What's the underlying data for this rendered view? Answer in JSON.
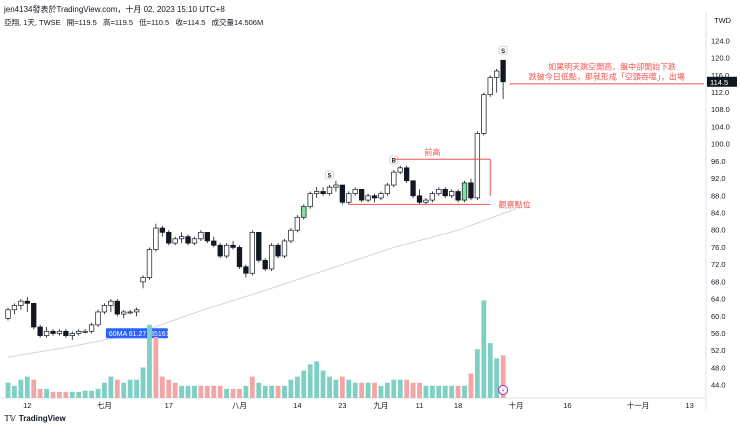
{
  "header": {
    "caption": "jen4134發表於TradingView.com，十月 02, 2023 15:10 UTC+8",
    "symbol": "亞翔, 1天, TWSE",
    "open": "開=119.5",
    "high": "高=119.5",
    "low": "低=110.5",
    "close": "收=114.5",
    "volume": "成交量14.506M",
    "currency": "TWD"
  },
  "footer": {
    "brand": "TradingView",
    "logo_icon": "tradingview-logo-icon"
  },
  "colors": {
    "up_volume": "#7ecfc4",
    "down_volume": "#f4a6a6",
    "annotation_red": "#f05350",
    "ma_line": "#d1d4dc",
    "ma_label_bg": "#2962ff",
    "price_label_bg": "#131722",
    "green_candle": "#7fe3a6"
  },
  "chart_data": {
    "type": "candlestick",
    "y_axis": {
      "ticks": [
        "124.0",
        "120.0",
        "116.0",
        "112.0",
        "108.0",
        "104.0",
        "100.0",
        "96.0",
        "92.0",
        "88.0",
        "84.0",
        "80.0",
        "76.0",
        "72.0",
        "68.0",
        "64.0",
        "60.0",
        "56.0",
        "52.0",
        "48.0",
        "44.0"
      ],
      "range": [
        41,
        127
      ]
    },
    "x_axis": {
      "ticks": [
        {
          "label": "12",
          "i": 3
        },
        {
          "label": "七月",
          "i": 15
        },
        {
          "label": "17",
          "i": 25
        },
        {
          "label": "八月",
          "i": 36
        },
        {
          "label": "14",
          "i": 45
        },
        {
          "label": "23",
          "i": 52
        },
        {
          "label": "九月",
          "i": 58
        },
        {
          "label": "11",
          "i": 64
        },
        {
          "label": "18",
          "i": 70
        },
        {
          "label": "十月",
          "i": 79
        },
        {
          "label": "16",
          "i": 87
        },
        {
          "label": "十一月",
          "i": 98
        },
        {
          "label": "13",
          "i": 106
        }
      ]
    },
    "last_price": "114.5",
    "ma_label": "60MA 61.27135161",
    "ma60": [
      [
        0,
        50.5
      ],
      [
        10,
        53
      ],
      [
        20,
        56
      ],
      [
        30,
        61.3
      ],
      [
        40,
        66
      ],
      [
        50,
        71
      ],
      [
        60,
        76
      ],
      [
        70,
        80
      ],
      [
        79,
        85
      ]
    ],
    "candles": [
      [
        59.5,
        62,
        59,
        61.5
      ],
      [
        61.5,
        63,
        60.5,
        62.5
      ],
      [
        62.5,
        64,
        61.5,
        63.5
      ],
      [
        63.5,
        64.5,
        61,
        63
      ],
      [
        63,
        62.5,
        57,
        57.5
      ],
      [
        57.5,
        58,
        55,
        55.5
      ],
      [
        55.5,
        57.5,
        55,
        56.5
      ],
      [
        56.5,
        57,
        55.5,
        56
      ],
      [
        56,
        57,
        55.5,
        56.5
      ],
      [
        56.5,
        57,
        55,
        55.5
      ],
      [
        55.5,
        56.5,
        54.5,
        56
      ],
      [
        56,
        57,
        55.5,
        56.5
      ],
      [
        56.5,
        57,
        56,
        56.5
      ],
      [
        56.5,
        58.5,
        56,
        58
      ],
      [
        58,
        61.5,
        57.5,
        61
      ],
      [
        61,
        63,
        60.5,
        62.5
      ],
      [
        62.5,
        64,
        61,
        63.5
      ],
      [
        63.5,
        64,
        60,
        60.5
      ],
      [
        60.5,
        61.5,
        59.5,
        61
      ],
      [
        61,
        61.5,
        60.5,
        61
      ],
      [
        61,
        62,
        60,
        61.5
      ],
      [
        68,
        69.5,
        66.5,
        69
      ],
      [
        69,
        76,
        68.5,
        75.5
      ],
      [
        75.5,
        81.5,
        75,
        80.5
      ],
      [
        80.5,
        81,
        78.5,
        79.5
      ],
      [
        79.5,
        80,
        76.5,
        77
      ],
      [
        77,
        78.5,
        76.5,
        78
      ],
      [
        78,
        79.5,
        77,
        78.5
      ],
      [
        78.5,
        79,
        76.5,
        77
      ],
      [
        77,
        78.5,
        76.5,
        78
      ],
      [
        78,
        80,
        77.5,
        79.5
      ],
      [
        79.5,
        79.5,
        77,
        77.5
      ],
      [
        77.5,
        78.5,
        76,
        76.5
      ],
      [
        76.5,
        77,
        73.5,
        74
      ],
      [
        74,
        77,
        73.5,
        76.5
      ],
      [
        76.5,
        77.5,
        75.5,
        76
      ],
      [
        76,
        76.5,
        71,
        71.5
      ],
      [
        71.5,
        72,
        69,
        70
      ],
      [
        70,
        80,
        69.5,
        79.5
      ],
      [
        79.5,
        79.5,
        72.5,
        73
      ],
      [
        73,
        73.5,
        70.5,
        71
      ],
      [
        71,
        77,
        70.5,
        76.5
      ],
      [
        76.5,
        77,
        73.5,
        74
      ],
      [
        74,
        78,
        73.5,
        77.5
      ],
      [
        77.5,
        80.5,
        77,
        80
      ],
      [
        80,
        83.5,
        79.5,
        83
      ],
      [
        83,
        86,
        82.5,
        85.5
      ],
      [
        85.5,
        89,
        85,
        88.5
      ],
      [
        88.5,
        90,
        87.5,
        89
      ],
      [
        89,
        90,
        88,
        88.5
      ],
      [
        88.5,
        90.5,
        88,
        90
      ],
      [
        90,
        91.5,
        89,
        90.5
      ],
      [
        90.5,
        90.5,
        86,
        86.5
      ],
      [
        86.5,
        89,
        86,
        88.5
      ],
      [
        88.5,
        90,
        88,
        89.5
      ],
      [
        89.5,
        89.5,
        86.5,
        87
      ],
      [
        87,
        88.5,
        86.5,
        88
      ],
      [
        88,
        88.5,
        86.5,
        87.5
      ],
      [
        87.5,
        89,
        87,
        88.5
      ],
      [
        88.5,
        91,
        88,
        90.5
      ],
      [
        90.5,
        94,
        90,
        93.5
      ],
      [
        93.5,
        95,
        93,
        94.5
      ],
      [
        94.5,
        95,
        91,
        91.5
      ],
      [
        91.5,
        91.5,
        87.5,
        88
      ],
      [
        88,
        89.5,
        86,
        86.5
      ],
      [
        86.5,
        87.5,
        86,
        87
      ],
      [
        87,
        89,
        86.5,
        88.5
      ],
      [
        88.5,
        90,
        88,
        89.5
      ],
      [
        89.5,
        90,
        87.5,
        88
      ],
      [
        88,
        89.5,
        87.5,
        89
      ],
      [
        89,
        89.5,
        86.5,
        87
      ],
      [
        87,
        91.5,
        86.5,
        91
      ],
      [
        91,
        92,
        87,
        87.5
      ],
      [
        87.5,
        103,
        87,
        102.5
      ],
      [
        102.5,
        112,
        102,
        111.5
      ],
      [
        111.5,
        116,
        111,
        115.5
      ],
      [
        115.5,
        117.5,
        112,
        117
      ],
      [
        119.5,
        119.5,
        110.5,
        114.5
      ]
    ],
    "volume_bars": [
      2.5,
      2.0,
      3.0,
      3.5,
      3.0,
      1.5,
      1.5,
      1.0,
      1.0,
      1.0,
      1.0,
      1.0,
      1.2,
      1.2,
      1.5,
      2.5,
      3.5,
      3.0,
      2.5,
      3.0,
      3.0,
      5.0,
      12.0,
      10.0,
      3.5,
      3.0,
      2.5,
      2.0,
      2.0,
      2.0,
      2.0,
      2.0,
      2.0,
      2.0,
      1.5,
      1.5,
      1.5,
      2.0,
      3.5,
      2.5,
      2.0,
      2.0,
      2.0,
      2.0,
      3.0,
      3.5,
      4.5,
      5.5,
      6.0,
      4.5,
      3.5,
      3.0,
      3.5,
      3.0,
      2.5,
      2.5,
      2.5,
      2.5,
      2.0,
      2.5,
      3.0,
      3.0,
      3.0,
      2.5,
      2.5,
      2.0,
      2.0,
      2.0,
      2.0,
      2.0,
      2.0,
      2.0,
      4.0,
      8.0,
      16.0,
      9.0,
      6.5,
      7.0
    ],
    "volume_down": [
      4,
      5,
      7,
      8,
      9,
      17,
      23,
      24,
      25,
      26,
      30,
      31,
      32,
      33,
      35,
      36,
      38,
      42,
      52,
      55,
      57,
      62,
      63,
      64,
      70,
      72,
      77
    ],
    "green_candles": [
      46,
      71
    ],
    "markers": [
      {
        "text": "S",
        "i": 50
      },
      {
        "text": "B",
        "i": 60
      },
      {
        "text": "S",
        "i": 77
      }
    ],
    "annotations": [
      {
        "text": "前高"
      },
      {
        "text": "觀察點位"
      },
      {
        "text": "如果明天跳空開高，盤中卻開始下跌"
      },
      {
        "text": "跌破今日低點，那就形成「空頭吞噬」，出場"
      }
    ],
    "levels": {
      "front_high": 96.5,
      "watch": 86,
      "exit": 114
    }
  }
}
